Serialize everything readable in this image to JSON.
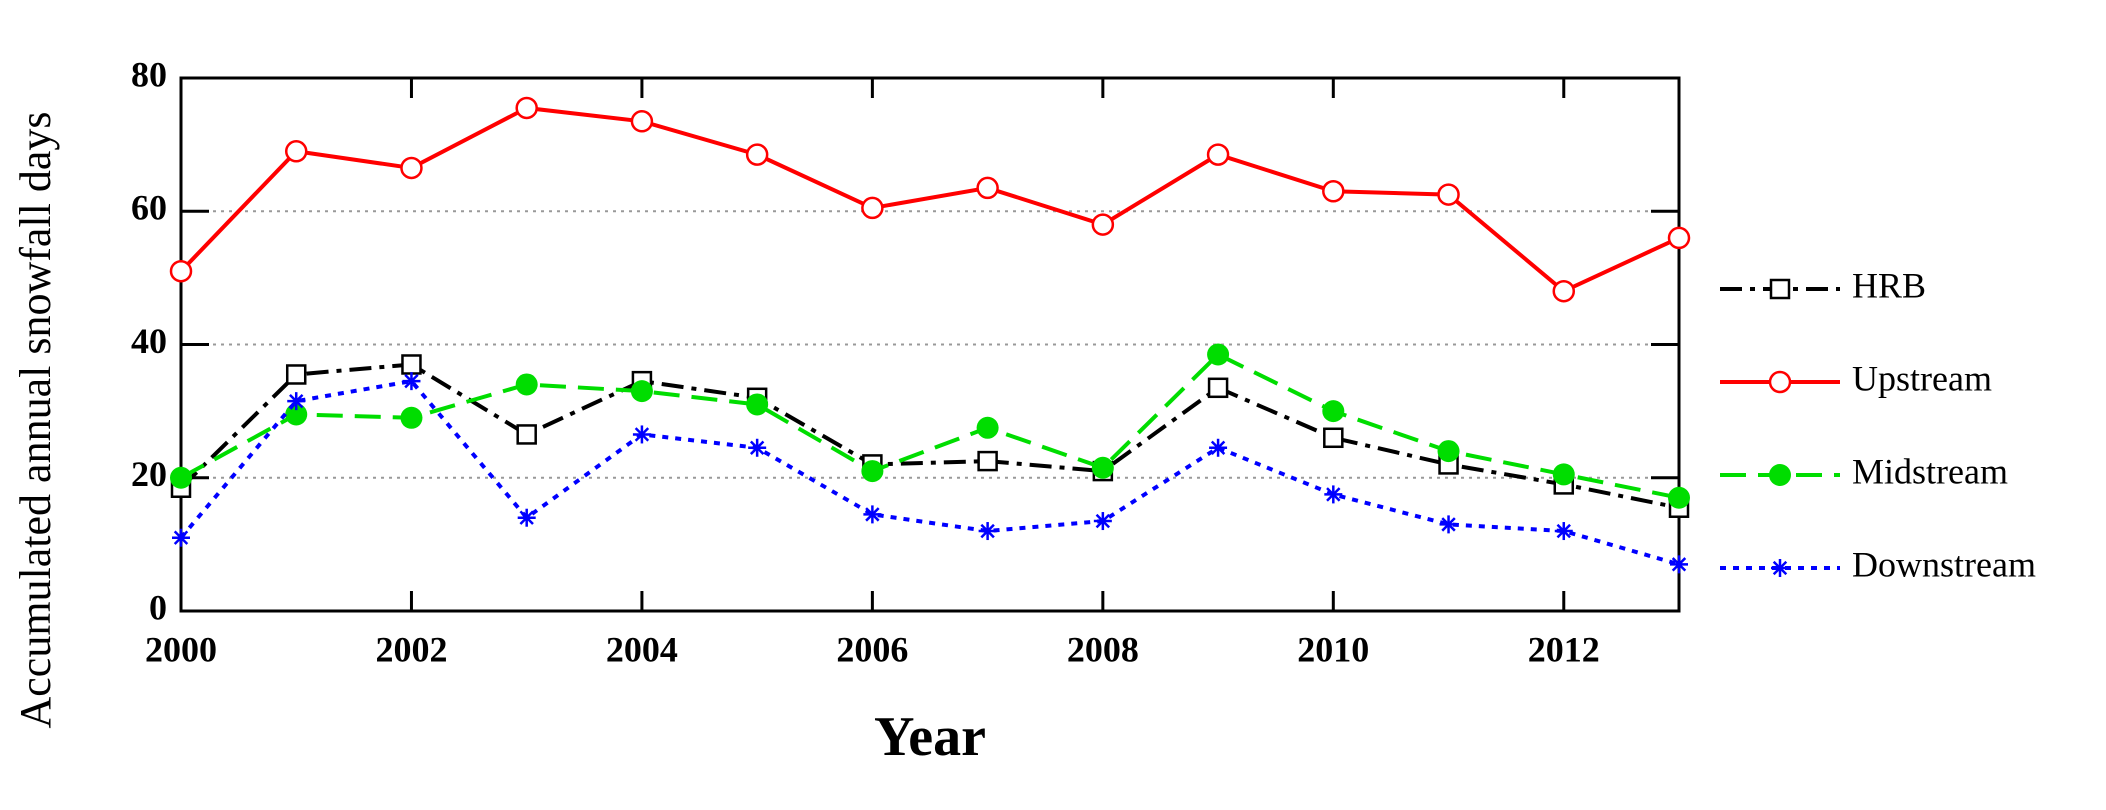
{
  "chart_data": {
    "type": "line",
    "x_label": "Year",
    "y_label": "Accumulated annual snowfall days",
    "x": [
      2000,
      2001,
      2002,
      2003,
      2004,
      2005,
      2006,
      2007,
      2008,
      2009,
      2010,
      2011,
      2012,
      2013
    ],
    "series": [
      {
        "name": "HRB",
        "color": "#000000",
        "marker": "square-open",
        "linestyle": "dashdot",
        "values": [
          18.5,
          35.5,
          37,
          26.5,
          34.5,
          32,
          22,
          22.5,
          21,
          33.5,
          26,
          22,
          19,
          15.5
        ]
      },
      {
        "name": "Upstream",
        "color": "#ff0000",
        "marker": "circle-open",
        "linestyle": "solid",
        "values": [
          51,
          69,
          66.5,
          75.5,
          73.5,
          68.5,
          60.5,
          63.5,
          58,
          68.5,
          63,
          62.5,
          48,
          56
        ]
      },
      {
        "name": "Midstream",
        "color": "#00dd00",
        "marker": "circle-filled",
        "linestyle": "dashed",
        "values": [
          20,
          29.5,
          29,
          34,
          33,
          31,
          21,
          27.5,
          21.5,
          38.5,
          30,
          24,
          20.5,
          17
        ]
      },
      {
        "name": "Downstream",
        "color": "#0000ff",
        "marker": "asterisk",
        "linestyle": "dotted",
        "values": [
          11,
          31.5,
          34.5,
          14,
          26.5,
          24.5,
          14.5,
          12,
          13.5,
          24.5,
          17.5,
          13,
          12,
          7
        ]
      }
    ],
    "xlim": [
      2000,
      2013
    ],
    "xticks": [
      2000,
      2002,
      2004,
      2006,
      2008,
      2010,
      2012
    ],
    "ylim": [
      0,
      80
    ],
    "yticks": [
      0,
      20,
      40,
      60,
      80
    ],
    "grid": true,
    "legend": "right"
  }
}
